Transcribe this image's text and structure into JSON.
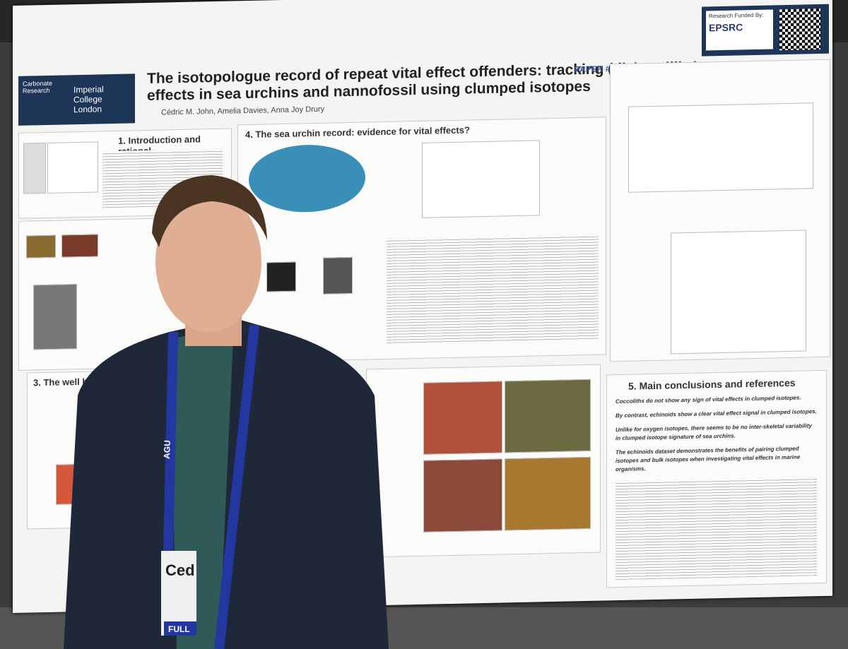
{
  "poster": {
    "title_line1": "The isotopologue record of repeat vital effect offenders: tracking (dis)equilibrium",
    "title_line2": "effects in sea urchins and nannofossil using clumped isotopes",
    "authors": "Cédric M. John, Amelia Davies, Anna Joy Drury",
    "paper_number": "PAPER #: B21H-0514",
    "logo": {
      "left": "Carbonate Research",
      "right": "Imperial College London"
    },
    "funding": {
      "label": "Research Funded By:",
      "funder": "EPSRC"
    },
    "sections": [
      {
        "heading": "1. Introduction and rational"
      },
      {
        "heading": "4. The sea urchin record: evidence for vital effects?"
      },
      {
        "heading": "3. The well behaved-co"
      },
      {
        "heading": "5. Main conclusions and references",
        "bullets": [
          "Coccoliths do not show any sign of vital effects in clumped isotopes.",
          "By contrast, echinoids show a clear vital effect signal in clumped isotopes.",
          "Unlike for oxygen isotopes, there seems to be no inter-skeletal variability in clumped isotope signature of sea urchins.",
          "The echinoids dataset demonstrates the benefits of pairing clumped isotopes and bulk isotopes when investigating vital effects in marine organisms."
        ]
      }
    ]
  },
  "lanyard": "AGU",
  "badge": {
    "name": "Ced",
    "tag": "FULL"
  }
}
